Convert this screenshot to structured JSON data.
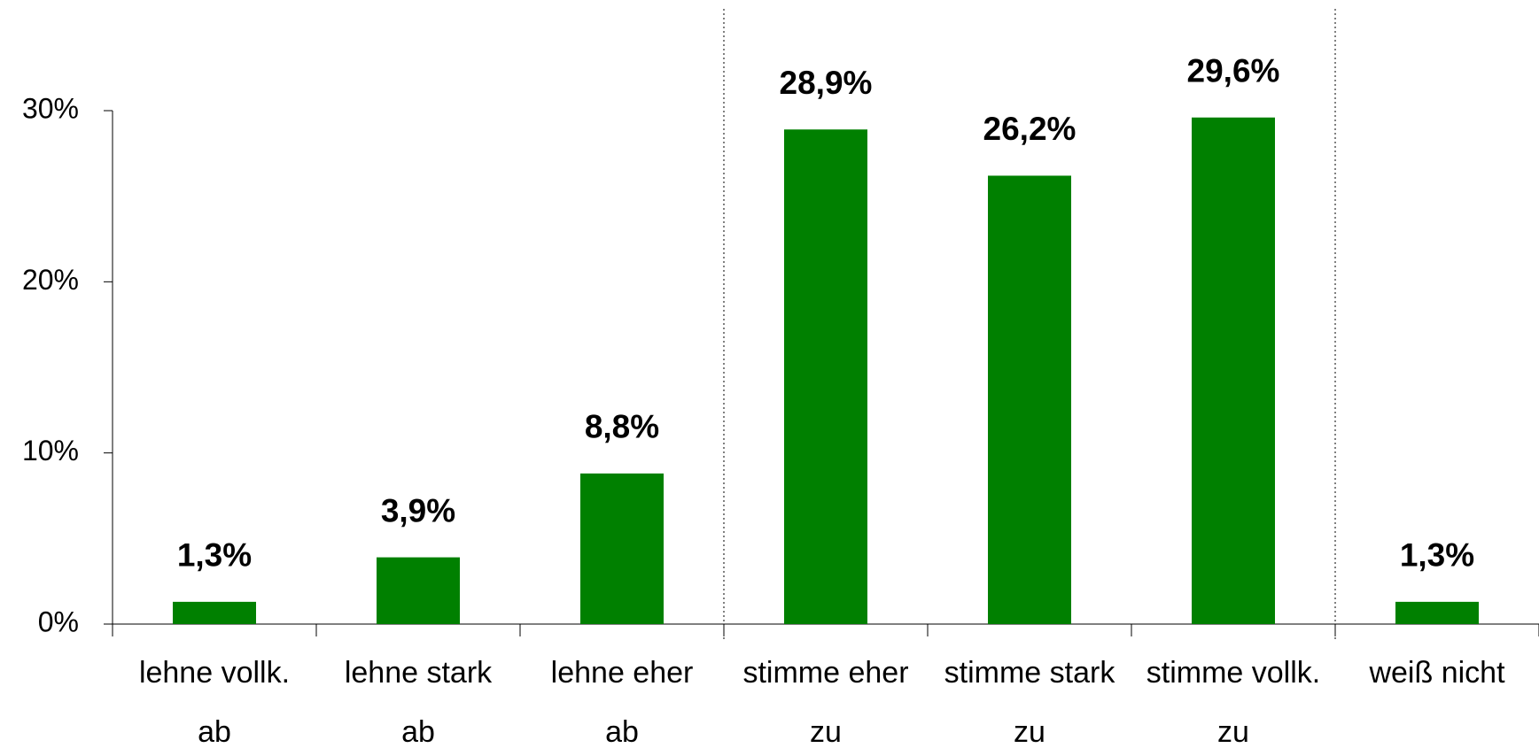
{
  "chart_data": {
    "type": "bar",
    "categories": [
      [
        "lehne vollk.",
        "ab"
      ],
      [
        "lehne stark",
        "ab"
      ],
      [
        "lehne eher",
        "ab"
      ],
      [
        "stimme eher",
        "zu"
      ],
      [
        "stimme stark",
        "zu"
      ],
      [
        "stimme vollk.",
        "zu"
      ],
      [
        "weiß nicht"
      ]
    ],
    "values": [
      1.3,
      3.9,
      8.8,
      28.9,
      26.2,
      29.6,
      1.3
    ],
    "value_labels": [
      "1,3%",
      "3,9%",
      "8,8%",
      "28,9%",
      "26,2%",
      "29,6%",
      "1,3%"
    ],
    "color": "#008000",
    "ylim": [
      0,
      30
    ],
    "yticks": [
      {
        "value": 0,
        "label": "0%"
      },
      {
        "value": 10,
        "label": "10%"
      },
      {
        "value": 20,
        "label": "20%"
      },
      {
        "value": 30,
        "label": "30%"
      }
    ]
  }
}
